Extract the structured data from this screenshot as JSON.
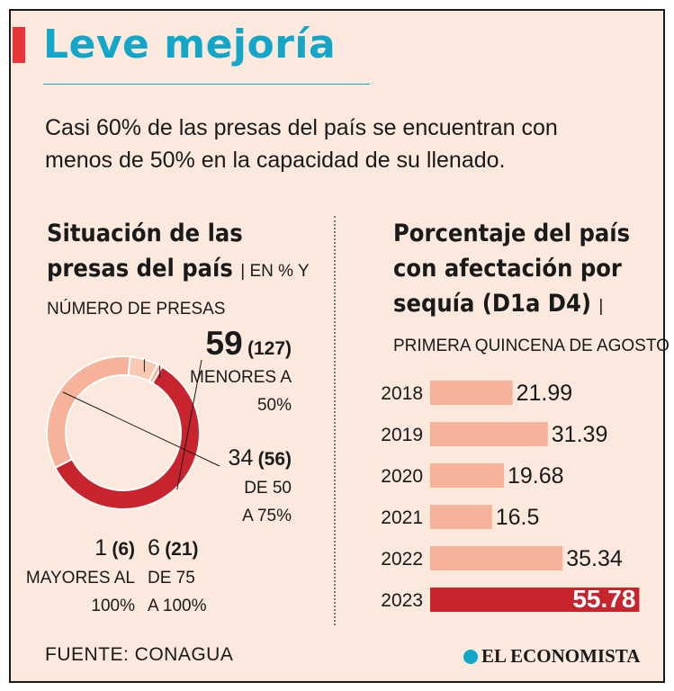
{
  "header": {
    "title": "Leve mejoría",
    "subtitle": "Casi 60% de las presas del país se encuentran con menos de 50% en la capacidad de su llenado."
  },
  "colors": {
    "background": "#fbe9dd",
    "title": "#12a6c9",
    "accent": "#e8343a",
    "dark_red": "#c8242e",
    "salmon": "#f6b39a",
    "light_salmon": "#f9c8b2"
  },
  "chart_data": [
    {
      "type": "pie",
      "title": "Situación de las presas del país",
      "qualifier": "| EN % Y",
      "subtitle": "NÚMERO DE PRESAS",
      "slices": [
        {
          "label_line1": "MENORES A",
          "label_line2": "50%",
          "percent": 59,
          "count": 127,
          "percent_text": "59",
          "count_text": "(127)",
          "color": "#c8242e"
        },
        {
          "label_line1": "DE 50",
          "label_line2": "A 75%",
          "percent": 34,
          "count": 56,
          "percent_text": "34",
          "count_text": "(56)",
          "color": "#f6b39a"
        },
        {
          "label_line1": "DE 75",
          "label_line2": "A 100%",
          "percent": 6,
          "count": 21,
          "percent_text": "6",
          "count_text": "(21)",
          "color": "#f9c8b2"
        },
        {
          "label_line1": "MAYORES AL",
          "label_line2": "100%",
          "percent": 1,
          "count": 6,
          "percent_text": "1",
          "count_text": "(6)",
          "color": "#f6b39a"
        }
      ]
    },
    {
      "type": "bar",
      "orientation": "horizontal",
      "title_line1": "Porcentaje del país",
      "title_line2": "con afectación por",
      "title_line3": "sequía (D1a D4)",
      "title_sep": "|",
      "subtitle": "PRIMERA QUINCENA DE AGOSTO",
      "categories": [
        "2018",
        "2019",
        "2020",
        "2021",
        "2022",
        "2023"
      ],
      "values": [
        21.99,
        31.39,
        19.68,
        16.5,
        35.34,
        55.78
      ],
      "value_labels": [
        "21.99",
        "31.39",
        "19.68",
        "16.5",
        "35.34",
        "55.78"
      ],
      "highlight_index": 5,
      "xlim": [
        0,
        60
      ]
    }
  ],
  "footer": {
    "source": "FUENTE: CONAGUA",
    "brand": "EL ECONOMISTA"
  }
}
